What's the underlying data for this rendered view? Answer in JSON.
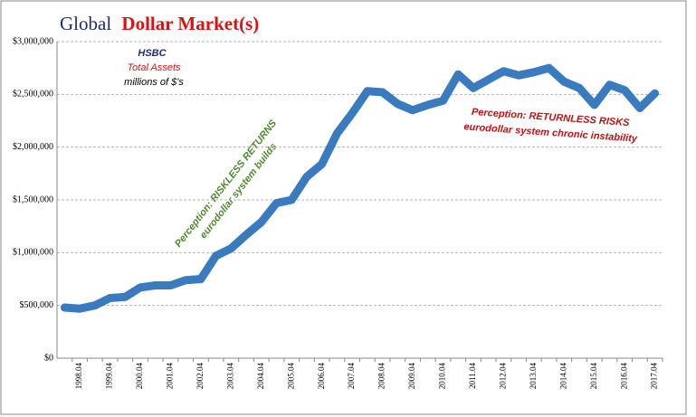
{
  "chart_data": {
    "type": "line",
    "title": "Global",
    "title_emphasis": "Dollar Market(s)",
    "annotations": [
      "HSBC",
      "Total Assets",
      "millions of $'s",
      "Perception: RISKLESS RETURNS",
      "eurodollar  system builds",
      "Perception: RETURNLESS RISKS",
      "eurodollar  system chronic instability"
    ],
    "categories": [
      null,
      "1998.04",
      null,
      "1999.04",
      null,
      "2000.04",
      null,
      "2001.04",
      null,
      "2002.04",
      null,
      "2003.04",
      null,
      "2004.04",
      null,
      "2005.04",
      null,
      "2006.04",
      null,
      "2007.04",
      null,
      "2008.04",
      null,
      "2009.04",
      null,
      "2010.04",
      null,
      "2011.04",
      null,
      "2012.04",
      null,
      "2013.04",
      null,
      "2014.04",
      null,
      "2015.04",
      null,
      "2016.04",
      null,
      "2017.04"
    ],
    "series": [
      {
        "name": "HSBC",
        "color": "#3a7bbf",
        "values": [
          480000,
          470000,
          500000,
          570000,
          580000,
          670000,
          690000,
          690000,
          740000,
          750000,
          970000,
          1040000,
          1170000,
          1290000,
          1470000,
          1500000,
          1720000,
          1840000,
          2130000,
          2320000,
          2530000,
          2520000,
          2410000,
          2350000,
          2400000,
          2440000,
          2690000,
          2560000,
          2640000,
          2720000,
          2680000,
          2710000,
          2750000,
          2620000,
          2560000,
          2400000,
          2590000,
          2540000,
          2370000,
          2510000
        ]
      }
    ],
    "ylim": [
      0,
      3000000
    ],
    "yticks": [
      {
        "value": 0,
        "label": "$0"
      },
      {
        "value": 500000,
        "label": "$500,000"
      },
      {
        "value": 1000000,
        "label": "$1,000,000"
      },
      {
        "value": 1500000,
        "label": "$1,500,000"
      },
      {
        "value": 2000000,
        "label": "$2,000,000"
      },
      {
        "value": 2500000,
        "label": "$2,500,000"
      },
      {
        "value": 3000000,
        "label": "$3,000,000"
      }
    ],
    "grid": true
  }
}
